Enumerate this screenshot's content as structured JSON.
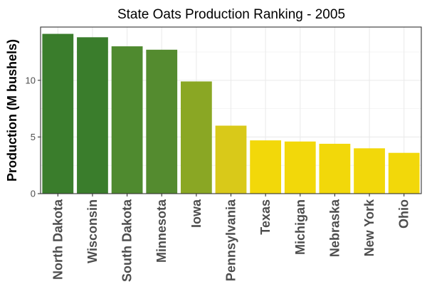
{
  "chart_data": {
    "type": "bar",
    "title": "State Oats Production Ranking - 2005",
    "xlabel": "",
    "ylabel": "Production (M bushels)",
    "ylim": [
      0,
      14.7
    ],
    "yticks": [
      0,
      5,
      10
    ],
    "grid": true,
    "legend": "none",
    "categories": [
      "North Dakota",
      "Wisconsin",
      "South Dakota",
      "Minnesota",
      "Iowa",
      "Pennsylvania",
      "Texas",
      "Michigan",
      "Nebraska",
      "New York",
      "Ohio"
    ],
    "values": [
      14.1,
      13.8,
      13.0,
      12.7,
      9.9,
      6.0,
      4.7,
      4.6,
      4.4,
      4.0,
      3.6
    ],
    "colors": [
      "#3a7d2c",
      "#3a7d2c",
      "#4f8a2f",
      "#548b2f",
      "#8aa724",
      "#d9c919",
      "#f2d80a",
      "#f2d80a",
      "#f2d80a",
      "#f2d80a",
      "#f2d80a"
    ]
  }
}
